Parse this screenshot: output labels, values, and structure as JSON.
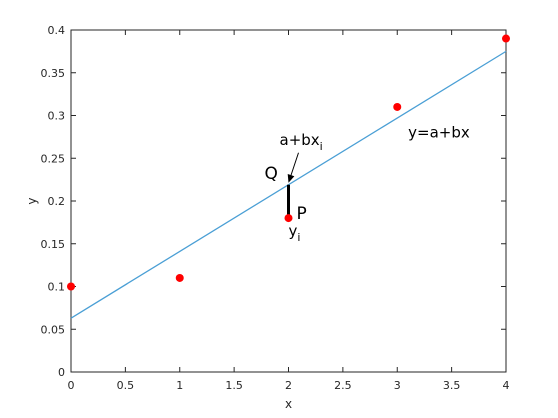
{
  "chart_data": {
    "type": "scatter",
    "title": "",
    "xlabel": "x",
    "ylabel": "y",
    "xlim": [
      0,
      4
    ],
    "ylim": [
      0,
      0.4
    ],
    "grid": false,
    "xticks": [
      "0",
      "0.5",
      "1",
      "1.5",
      "2",
      "2.5",
      "3",
      "3.5",
      "4"
    ],
    "yticks": [
      "0",
      "0.05",
      "0.1",
      "0.15",
      "0.2",
      "0.25",
      "0.3",
      "0.35",
      "0.4"
    ],
    "points": {
      "x": [
        0,
        1,
        2,
        3,
        4
      ],
      "y": [
        0.1,
        0.11,
        0.18,
        0.31,
        0.39
      ],
      "color": "#ff0000"
    },
    "fit_line": {
      "label": "y=a+bx",
      "intercept": 0.063,
      "slope": 0.078,
      "color": "#4a9fd5"
    },
    "residual_segment": {
      "x": 2,
      "y_from": 0.18,
      "y_to": 0.219,
      "color": "#000000"
    },
    "annotations": {
      "fit_point_label": "Q",
      "data_point_label": "P",
      "fit_value_base": "a+bx",
      "fit_value_sub": "i",
      "data_value_base": "y",
      "data_value_sub": "i"
    }
  }
}
